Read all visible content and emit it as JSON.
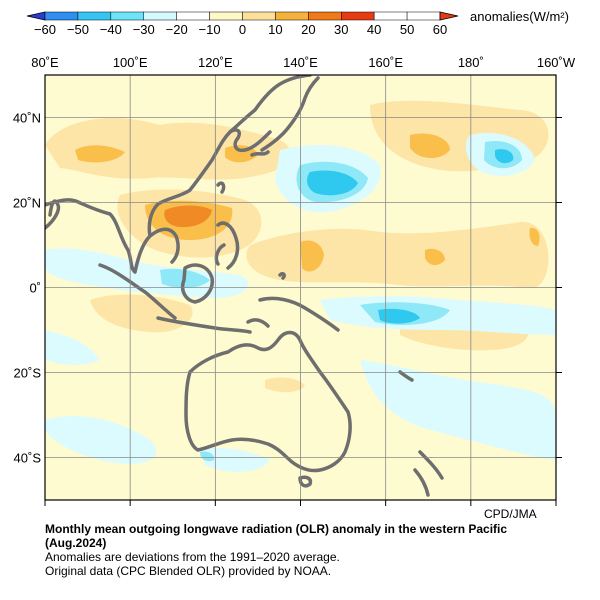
{
  "colorbar": {
    "unit_label": "anomalies(W/m²)",
    "ticks": [
      "−60",
      "−50",
      "−40",
      "−30",
      "−20",
      "−10",
      "0",
      "10",
      "20",
      "30",
      "40",
      "50",
      "60"
    ],
    "colors": [
      "#2b3dd0",
      "#2f8ff0",
      "#36c5f2",
      "#6fe3f7",
      "#d2faff",
      "#ffffff",
      "#fff9c8",
      "#fde09a",
      "#f7b23c",
      "#ef7a17",
      "#e63a12",
      "#ffffff"
    ]
  },
  "axes": {
    "lon_labels": [
      "80˚E",
      "100˚E",
      "120˚E",
      "140˚E",
      "160˚E",
      "180˚",
      "160˚W"
    ],
    "lat_labels": [
      "40˚N",
      "20˚N",
      "0˚",
      "20˚S",
      "40˚S"
    ],
    "grid": true
  },
  "map": {
    "region": "western Pacific",
    "lon_range": [
      80,
      200
    ],
    "lat_range": [
      -50,
      50
    ],
    "coastline_color": "#6e6e6e",
    "colors": {
      "pos10": "#fffbd0",
      "pos20": "#fde5a8",
      "pos30": "#f9bf4a",
      "pos40": "#ef8a24",
      "neg10": "#dcfbff",
      "neg20": "#8ee8f8",
      "neg30": "#2fc9ef"
    }
  },
  "credit": "CPD/JMA",
  "caption": {
    "title": "Monthly mean outgoing longwave radiation (OLR) anomaly in the western Pacific",
    "period": "(Aug.2024)",
    "line1": "Anomalies are deviations from the 1991–2020 average.",
    "line2": "Original data (CPC Blended OLR) provided by NOAA."
  }
}
